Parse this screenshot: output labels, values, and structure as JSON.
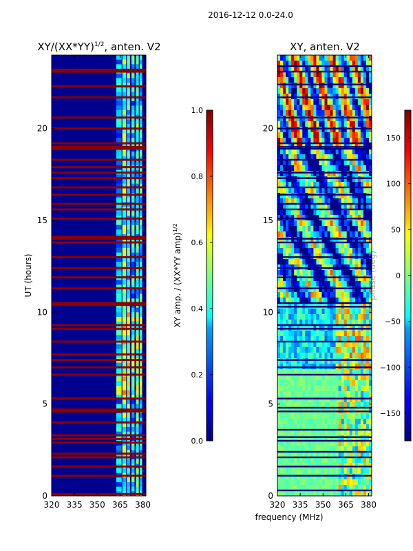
{
  "suptitle": "2016-12-12 0.0-24.0",
  "chart_data": [
    {
      "type": "heatmap",
      "title_main": "XY/(XX*YY)",
      "title_sup": "1/2",
      "title_tail": ", anten. V2",
      "xlabel": "",
      "ylabel": "UT (hours)",
      "xlim": [
        320,
        382
      ],
      "ylim": [
        0,
        24
      ],
      "xticks": [
        320,
        335,
        350,
        365,
        380
      ],
      "yticks": [
        0,
        5,
        10,
        15,
        20
      ],
      "colormap": "jet",
      "colorbar": {
        "label_main": "XY amp. / (XX*YY amp)",
        "label_sup": "1/2",
        "range": [
          0.0,
          1.0
        ],
        "ticks": [
          "0.0",
          "0.2",
          "0.4",
          "0.6",
          "0.8",
          "1.0"
        ]
      },
      "flagged_rows_ut_hours": [
        0.1,
        1.1,
        1.6,
        2.1,
        2.3,
        2.9,
        3.1,
        3.3,
        4.0,
        4.6,
        4.7,
        5.3,
        6.6,
        7.0,
        7.4,
        7.7,
        8.4,
        9.1,
        9.3,
        10.4,
        10.5,
        11.3,
        11.9,
        12.4,
        13.0,
        13.8,
        14.0,
        14.1,
        15.1,
        15.6,
        15.9,
        16.4,
        16.8,
        17.3,
        17.6,
        17.9,
        18.3,
        18.9,
        19.0,
        19.2,
        20.0,
        20.6,
        21.7,
        22.3,
        23.1,
        23.2
      ]
    },
    {
      "type": "heatmap",
      "title_main": "XY, anten. V2",
      "xlabel": "frequency (MHz)",
      "ylabel": "",
      "xlim": [
        320,
        382
      ],
      "ylim": [
        0,
        24
      ],
      "xticks": [
        320,
        335,
        350,
        365,
        380
      ],
      "yticks": [
        0,
        5,
        10,
        15,
        20
      ],
      "colormap": "jet",
      "colorbar": {
        "label_main": "phase (deg)",
        "range": [
          -180,
          180
        ],
        "ticks": [
          "−150",
          "−100",
          "−50",
          "0",
          "50",
          "100",
          "150"
        ]
      },
      "flagged_rows_ut_hours": [
        0.3,
        1.1,
        1.6,
        2.1,
        2.4,
        3.0,
        3.2,
        3.6,
        4.6,
        4.8,
        5.3,
        6.6,
        7.0,
        7.4,
        8.4,
        9.1,
        9.3,
        10.3,
        10.5,
        11.3,
        11.9,
        12.4,
        13.0,
        13.8,
        14.0,
        15.1,
        15.6,
        15.9,
        16.4,
        16.8,
        17.3,
        17.6,
        18.3,
        18.9,
        19.0,
        19.2,
        20.0,
        20.6,
        21.7,
        22.4,
        23.1,
        23.4
      ]
    }
  ]
}
